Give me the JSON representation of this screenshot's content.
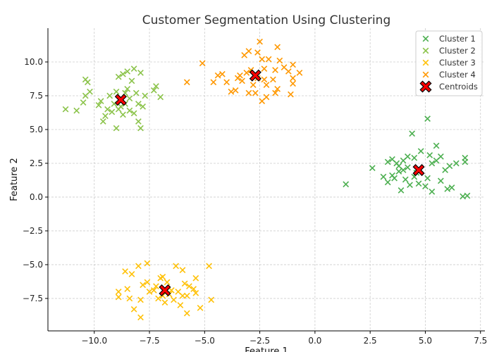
{
  "chart_data": {
    "type": "scatter",
    "title": "Customer Segmentation Using Clustering",
    "xlabel": "Feature 1",
    "ylabel": "Feature 2",
    "xlim": [
      -12.1,
      7.7
    ],
    "ylim": [
      -9.9,
      12.5
    ],
    "xticks": [
      -10,
      -7.5,
      -5,
      -2.5,
      0,
      2.5,
      5,
      7.5
    ],
    "xtick_labels": [
      "−10.0",
      "−7.5",
      "−5.0",
      "−2.5",
      "0.0",
      "2.5",
      "5.0",
      "7.5"
    ],
    "yticks": [
      10,
      7.5,
      5,
      2.5,
      0,
      -2.5,
      -5,
      -7.5
    ],
    "ytick_labels": [
      "10.0",
      "7.5",
      "5.0",
      "2.5",
      "0.0",
      "−2.5",
      "−5.0",
      "−7.5"
    ],
    "grid": true,
    "legend_position": "top-right",
    "series": [
      {
        "name": "Cluster 1",
        "color": "#4caf50",
        "points": [
          [
            1.4,
            0.95
          ],
          [
            2.6,
            2.15
          ],
          [
            4.4,
            4.7
          ],
          [
            5.1,
            5.8
          ],
          [
            3.3,
            2.6
          ],
          [
            3.5,
            2.8
          ],
          [
            3.8,
            2.3
          ],
          [
            4.0,
            2.7
          ],
          [
            4.2,
            3.0
          ],
          [
            4.5,
            2.9
          ],
          [
            4.8,
            3.4
          ],
          [
            5.2,
            3.1
          ],
          [
            5.5,
            3.8
          ],
          [
            5.7,
            3.0
          ],
          [
            6.1,
            2.3
          ],
          [
            6.4,
            2.5
          ],
          [
            6.8,
            2.9
          ],
          [
            6.8,
            2.6
          ],
          [
            3.1,
            1.5
          ],
          [
            3.3,
            1.1
          ],
          [
            3.5,
            1.6
          ],
          [
            3.8,
            1.9
          ],
          [
            3.9,
            0.5
          ],
          [
            4.1,
            1.3
          ],
          [
            4.3,
            0.9
          ],
          [
            4.5,
            1.5
          ],
          [
            4.7,
            1.0
          ],
          [
            5.0,
            0.8
          ],
          [
            5.1,
            1.4
          ],
          [
            5.3,
            0.4
          ],
          [
            5.7,
            1.2
          ],
          [
            6.0,
            0.6
          ],
          [
            6.2,
            0.7
          ],
          [
            6.7,
            0.05
          ],
          [
            6.9,
            0.1
          ],
          [
            4.0,
            2.0
          ],
          [
            4.2,
            2.2
          ],
          [
            3.7,
            2.5
          ],
          [
            5.3,
            2.5
          ],
          [
            5.9,
            2.0
          ],
          [
            4.6,
            1.8
          ],
          [
            3.6,
            1.4
          ],
          [
            5.5,
            2.7
          ]
        ]
      },
      {
        "name": "Cluster 2",
        "color": "#8bc34a",
        "points": [
          [
            -11.3,
            6.5
          ],
          [
            -10.8,
            6.4
          ],
          [
            -10.5,
            7.0
          ],
          [
            -10.4,
            7.5
          ],
          [
            -10.2,
            7.8
          ],
          [
            -10.3,
            8.5
          ],
          [
            -10.4,
            8.7
          ],
          [
            -9.7,
            7.1
          ],
          [
            -9.5,
            6.0
          ],
          [
            -9.6,
            5.6
          ],
          [
            -9.4,
            6.5
          ],
          [
            -9.2,
            6.3
          ],
          [
            -9.0,
            5.1
          ],
          [
            -8.9,
            6.5
          ],
          [
            -8.7,
            6.1
          ],
          [
            -8.6,
            7.7
          ],
          [
            -8.5,
            8.0
          ],
          [
            -8.9,
            8.9
          ],
          [
            -8.7,
            9.1
          ],
          [
            -8.5,
            9.3
          ],
          [
            -8.2,
            9.5
          ],
          [
            -8.3,
            8.6
          ],
          [
            -7.9,
            9.2
          ],
          [
            -8.1,
            7.7
          ],
          [
            -8.0,
            6.9
          ],
          [
            -7.8,
            6.7
          ],
          [
            -7.7,
            7.5
          ],
          [
            -7.3,
            7.9
          ],
          [
            -7.2,
            8.2
          ],
          [
            -7.0,
            7.4
          ],
          [
            -8.2,
            6.2
          ],
          [
            -8.0,
            5.6
          ],
          [
            -7.9,
            5.1
          ],
          [
            -8.4,
            6.4
          ],
          [
            -9.0,
            7.8
          ],
          [
            -9.3,
            7.5
          ],
          [
            -9.8,
            6.8
          ],
          [
            -8.8,
            6.7
          ],
          [
            -8.4,
            7.3
          ],
          [
            -9.1,
            6.9
          ],
          [
            -8.6,
            6.9
          ]
        ]
      },
      {
        "name": "Cluster 3",
        "color": "#ffc107",
        "points": [
          [
            -8.9,
            -7.0
          ],
          [
            -8.9,
            -7.4
          ],
          [
            -8.5,
            -6.8
          ],
          [
            -8.4,
            -7.5
          ],
          [
            -8.2,
            -8.3
          ],
          [
            -7.9,
            -8.9
          ],
          [
            -8.6,
            -5.5
          ],
          [
            -8.3,
            -5.7
          ],
          [
            -8.0,
            -5.1
          ],
          [
            -7.6,
            -4.9
          ],
          [
            -7.6,
            -6.3
          ],
          [
            -7.5,
            -7.0
          ],
          [
            -7.2,
            -6.6
          ],
          [
            -7.0,
            -6.0
          ],
          [
            -6.9,
            -5.9
          ],
          [
            -6.7,
            -6.3
          ],
          [
            -7.1,
            -7.5
          ],
          [
            -6.8,
            -7.8
          ],
          [
            -6.4,
            -7.6
          ],
          [
            -6.3,
            -5.1
          ],
          [
            -6.0,
            -5.4
          ],
          [
            -5.9,
            -6.4
          ],
          [
            -5.7,
            -6.6
          ],
          [
            -5.4,
            -6.0
          ],
          [
            -5.4,
            -7.1
          ],
          [
            -5.8,
            -7.3
          ],
          [
            -6.1,
            -8.0
          ],
          [
            -5.8,
            -8.6
          ],
          [
            -5.2,
            -8.2
          ],
          [
            -4.8,
            -5.1
          ],
          [
            -4.7,
            -7.6
          ],
          [
            -6.5,
            -6.9
          ],
          [
            -6.2,
            -7.0
          ],
          [
            -7.8,
            -6.5
          ],
          [
            -7.9,
            -7.6
          ],
          [
            -6.6,
            -7.2
          ],
          [
            -7.3,
            -6.9
          ],
          [
            -6.0,
            -7.3
          ],
          [
            -5.5,
            -6.8
          ],
          [
            -6.9,
            -7.3
          ]
        ]
      },
      {
        "name": "Cluster 4",
        "color": "#ff9800",
        "points": [
          [
            -5.8,
            8.5
          ],
          [
            -5.1,
            9.9
          ],
          [
            -4.4,
            9.0
          ],
          [
            -4.2,
            9.1
          ],
          [
            -4.0,
            8.5
          ],
          [
            -3.8,
            7.8
          ],
          [
            -3.6,
            7.9
          ],
          [
            -3.5,
            8.8
          ],
          [
            -3.3,
            8.6
          ],
          [
            -3.2,
            10.5
          ],
          [
            -3.0,
            10.8
          ],
          [
            -2.9,
            9.4
          ],
          [
            -2.6,
            10.7
          ],
          [
            -2.5,
            11.5
          ],
          [
            -2.4,
            10.2
          ],
          [
            -2.3,
            9.5
          ],
          [
            -2.1,
            10.2
          ],
          [
            -2.2,
            7.4
          ],
          [
            -2.4,
            7.1
          ],
          [
            -2.2,
            8.3
          ],
          [
            -1.9,
            8.7
          ],
          [
            -1.8,
            9.4
          ],
          [
            -1.6,
            10.1
          ],
          [
            -1.7,
            11.1
          ],
          [
            -1.4,
            9.6
          ],
          [
            -1.2,
            9.3
          ],
          [
            -1.0,
            9.8
          ],
          [
            -0.7,
            9.2
          ],
          [
            -1.0,
            8.4
          ],
          [
            -1.0,
            8.8
          ],
          [
            -1.1,
            7.6
          ],
          [
            -1.7,
            8.0
          ],
          [
            -1.8,
            7.7
          ],
          [
            -2.7,
            7.7
          ],
          [
            -3.0,
            7.7
          ],
          [
            -2.8,
            8.3
          ],
          [
            -2.3,
            8.7
          ],
          [
            -2.6,
            8.8
          ],
          [
            -3.1,
            9.2
          ],
          [
            -3.4,
            9.0
          ],
          [
            -4.6,
            8.5
          ]
        ]
      }
    ],
    "centroids": {
      "name": "Centroids",
      "color": "#ff0000",
      "points": [
        [
          4.7,
          2.0
        ],
        [
          -8.8,
          7.2
        ],
        [
          -6.8,
          -6.9
        ],
        [
          -2.7,
          9.0
        ]
      ]
    }
  }
}
